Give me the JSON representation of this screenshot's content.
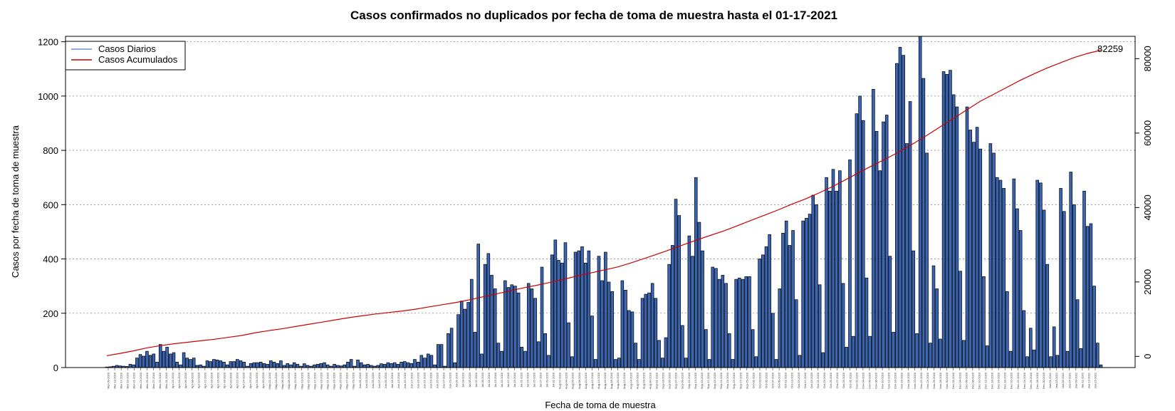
{
  "chart_data": {
    "type": "bar",
    "title": "Casos confirmados no duplicados por fecha de toma de muestra hasta el 01-17-2021",
    "xlabel": "Fecha de toma de muestra",
    "ylabel": "Casos por fecha de toma de muestra",
    "ylim": [
      0,
      1220
    ],
    "y_ticks": [
      0,
      200,
      400,
      600,
      800,
      1000,
      1200
    ],
    "ylim_right": [
      -3000,
      86000
    ],
    "y2_ticks": [
      0,
      20000,
      40000,
      60000,
      80000
    ],
    "grid": "horizontal dotted",
    "legend": {
      "position": "top-left",
      "entries": [
        {
          "label": "Casos Diarios",
          "color": "#6a8fd8"
        },
        {
          "label": "Casos Acumulados",
          "color": "#cc0000"
        }
      ]
    },
    "end_annotation": "82259",
    "x_ticks": [
      "Mar-09-2020",
      "Mar-13-2020",
      "Mar-17-2020",
      "Mar-19-2020",
      "Mar-21-2020",
      "Mar-23-2020",
      "Mar-25-2020",
      "Mar-27-2020",
      "Mar-29-2020",
      "Mar-31-2020",
      "Apr-02-2020",
      "Apr-04-2020",
      "Apr-06-2020",
      "Apr-08-2020",
      "Apr-10-2020",
      "Apr-12-2020",
      "Apr-14-2020",
      "Apr-16-2020",
      "Apr-18-2020",
      "Apr-20-2020",
      "Apr-22-2020",
      "Apr-24-2020",
      "Apr-26-2020",
      "Apr-28-2020",
      "Apr-30-2020",
      "May-02-2020",
      "May-04-2020",
      "May-06-2020",
      "May-08-2020",
      "May-10-2020",
      "May-13-2020",
      "May-15-2020",
      "May-17-2020",
      "May-19-2020",
      "May-21-2020",
      "May-23-2020",
      "May-25-2020",
      "May-27-2020",
      "May-29-2020",
      "Jun-01-2020",
      "Jun-03-2020",
      "Jun-05-2020",
      "Jun-07-2020",
      "Jun-09-2020",
      "Jun-11-2020",
      "Jun-13-2020",
      "Jun-15-2020",
      "Jun-17-2020",
      "Jun-19-2020",
      "Jun-21-2020",
      "Jun-23-2020",
      "Jun-25-2020",
      "Jun-27-2020",
      "Jun-29-2020",
      "Jul-01-2020",
      "Jul-03-2020",
      "Jul-05-2020",
      "Jul-07-2020",
      "Jul-09-2020",
      "Jul-11-2020",
      "Jul-13-2020",
      "Jul-15-2020",
      "Jul-17-2020",
      "Jul-19-2020",
      "Jul-21-2020",
      "Jul-23-2020",
      "Jul-25-2020",
      "Jul-27-2020",
      "Jul-29-2020",
      "Jul-31-2020",
      "Aug-02-2020",
      "Aug-04-2020",
      "Aug-06-2020",
      "Aug-08-2020",
      "Aug-10-2020",
      "Aug-12-2020",
      "Aug-14-2020",
      "Aug-16-2020",
      "Aug-18-2020",
      "Aug-20-2020",
      "Aug-22-2020",
      "Aug-24-2020",
      "Aug-26-2020",
      "Aug-28-2020",
      "Aug-30-2020",
      "Sep-01-2020",
      "Sep-03-2020",
      "Sep-05-2020",
      "Sep-07-2020",
      "Sep-09-2020",
      "Sep-11-2020",
      "Sep-13-2020",
      "Sep-15-2020",
      "Sep-17-2020",
      "Sep-19-2020",
      "Sep-21-2020",
      "Sep-23-2020",
      "Sep-25-2020",
      "Sep-27-2020",
      "Sep-29-2020",
      "Oct-01-2020",
      "Oct-03-2020",
      "Oct-05-2020",
      "Oct-07-2020",
      "Oct-09-2020",
      "Oct-11-2020",
      "Oct-13-2020",
      "Oct-15-2020",
      "Oct-17-2020",
      "Oct-19-2020",
      "Oct-21-2020",
      "Oct-23-2020",
      "Oct-25-2020",
      "Oct-27-2020",
      "Oct-29-2020",
      "Oct-31-2020",
      "Nov-02-2020",
      "Nov-04-2020",
      "Nov-06-2020",
      "Nov-08-2020",
      "Nov-10-2020",
      "Nov-12-2020",
      "Nov-14-2020",
      "Nov-16-2020",
      "Nov-18-2020",
      "Nov-20-2020",
      "Nov-22-2020",
      "Nov-24-2020",
      "Nov-26-2020",
      "Nov-28-2020",
      "Nov-30-2020",
      "Dec-02-2020",
      "Dec-04-2020",
      "Dec-06-2020",
      "Dec-08-2020",
      "Dec-10-2020",
      "Dec-12-2020",
      "Dec-14-2020",
      "Dec-16-2020",
      "Dec-18-2020",
      "Dec-20-2020",
      "Dec-22-2020",
      "Dec-24-2020",
      "Dec-26-2020",
      "Dec-28-2020",
      "Dec-30-2020",
      "Jan-01-2021",
      "Jan-03-2021",
      "Jan-05-2021",
      "Jan-07-2021",
      "Jan-09-2021",
      "Jan-11-2021",
      "Jan-13-2021",
      "Jan-15-2021"
    ],
    "daily_values": [
      2,
      3,
      5,
      8,
      6,
      5,
      4,
      12,
      10,
      35,
      48,
      42,
      60,
      45,
      50,
      20,
      85,
      60,
      75,
      50,
      55,
      20,
      10,
      55,
      35,
      30,
      35,
      8,
      10,
      5,
      25,
      22,
      30,
      28,
      25,
      20,
      10,
      22,
      22,
      30,
      25,
      20,
      5,
      15,
      18,
      18,
      20,
      15,
      12,
      25,
      20,
      15,
      25,
      8,
      15,
      10,
      18,
      12,
      5,
      14,
      8,
      5,
      10,
      12,
      15,
      18,
      10,
      5,
      12,
      8,
      6,
      10,
      20,
      30,
      5,
      28,
      18,
      10,
      12,
      8,
      5,
      8,
      14,
      12,
      18,
      15,
      18,
      12,
      20,
      22,
      18,
      15,
      30,
      20,
      45,
      35,
      50,
      45,
      10,
      85,
      85,
      5,
      125,
      145,
      18,
      195,
      245,
      215,
      240,
      325,
      130,
      455,
      50,
      380,
      420,
      340,
      290,
      90,
      60,
      320,
      295,
      305,
      300,
      275,
      75,
      60,
      310,
      290,
      255,
      95,
      370,
      125,
      45,
      415,
      470,
      395,
      385,
      460,
      165,
      40,
      425,
      430,
      445,
      385,
      430,
      190,
      30,
      410,
      320,
      425,
      315,
      280,
      30,
      35,
      320,
      285,
      210,
      205,
      90,
      30,
      255,
      270,
      275,
      310,
      255,
      100,
      35,
      110,
      380,
      450,
      620,
      560,
      155,
      35,
      485,
      410,
      700,
      535,
      430,
      140,
      30,
      370,
      365,
      325,
      340,
      310,
      125,
      30,
      325,
      330,
      325,
      335,
      335,
      140,
      40,
      400,
      415,
      445,
      490,
      200,
      30,
      290,
      495,
      540,
      450,
      505,
      250,
      45,
      540,
      550,
      565,
      635,
      600,
      305,
      55,
      700,
      650,
      730,
      650,
      725,
      310,
      75,
      765,
      115,
      935,
      1000,
      910,
      330,
      115,
      1025,
      870,
      725,
      905,
      930,
      410,
      130,
      1120,
      1180,
      1150,
      825,
      980,
      430,
      125,
      1220,
      1065,
      790,
      90,
      375,
      290,
      105,
      1090,
      1080,
      1095,
      1005,
      960,
      355,
      100,
      960,
      875,
      830,
      885,
      805,
      335,
      80,
      825,
      790,
      700,
      690,
      660,
      280,
      60,
      695,
      585,
      505,
      210,
      40,
      145,
      65,
      690,
      680,
      580,
      380,
      40,
      150,
      45,
      660,
      575,
      60,
      720,
      600,
      250,
      70,
      650,
      520,
      530,
      300,
      90,
      10
    ],
    "cumulative_values": [
      200,
      800,
      1500,
      2300,
      2900,
      3400,
      3800,
      4200,
      4600,
      5100,
      5600,
      6300,
      6900,
      7400,
      8000,
      8600,
      9200,
      9800,
      10400,
      10900,
      11400,
      11800,
      12200,
      12700,
      13300,
      13900,
      14500,
      15200,
      16000,
      16800,
      17600,
      18400,
      19100,
      19900,
      20700,
      21600,
      22400,
      23200,
      24000,
      25100,
      26300,
      27500,
      28800,
      30100,
      31400,
      32600,
      33800,
      35200,
      36600,
      38000,
      39400,
      40900,
      42300,
      43900,
      45600,
      47500,
      49400,
      51300,
      53100,
      55000,
      57100,
      59300,
      61600,
      63900,
      66200,
      68500,
      70400,
      72300,
      74200,
      75900,
      77500,
      78900,
      80300,
      81400,
      82259
    ]
  }
}
